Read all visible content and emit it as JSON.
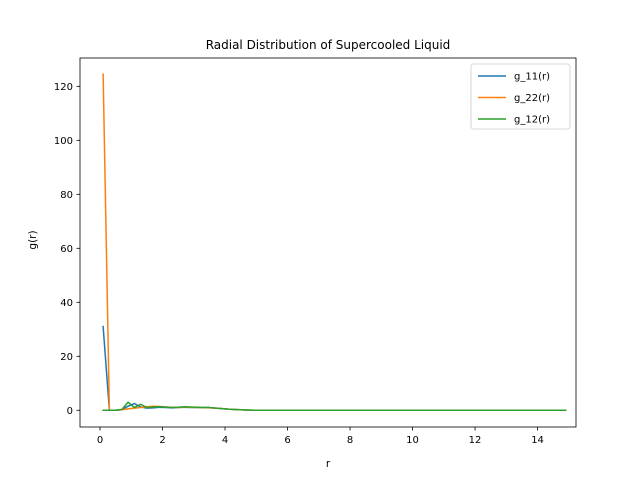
{
  "chart_data": {
    "type": "line",
    "title": "Radial Distribution of Supercooled Liquid",
    "xlabel": "r",
    "ylabel": "g(r)",
    "xlim": [
      -0.64,
      15.23
    ],
    "ylim": [
      -6.2,
      130.5
    ],
    "xticks": [
      0,
      2,
      4,
      6,
      8,
      10,
      12,
      14
    ],
    "yticks": [
      0,
      20,
      40,
      60,
      80,
      100,
      120
    ],
    "grid": false,
    "legend_position": "top-right",
    "colors": [
      "#1f77b4",
      "#ff7f0e",
      "#2ca02c"
    ],
    "series": [
      {
        "name": "g_11(r)",
        "x": [
          0.1,
          0.3,
          0.5,
          0.7,
          0.9,
          1.1,
          1.3,
          1.5,
          1.7,
          1.9,
          2.1,
          2.3,
          2.5,
          2.7,
          2.9,
          3.1,
          3.3,
          3.5,
          3.7,
          3.9,
          4.1,
          4.3,
          4.5,
          4.7,
          4.9,
          5.1,
          5.5,
          6,
          7,
          8,
          9,
          10,
          11,
          12,
          13,
          14,
          14.9
        ],
        "y": [
          31,
          0,
          0,
          0.3,
          1.5,
          2.5,
          1.2,
          0.8,
          0.9,
          1.1,
          1.0,
          0.9,
          1.0,
          1.1,
          1.0,
          1.0,
          1.0,
          1.0,
          0.8,
          0.6,
          0.4,
          0.3,
          0.2,
          0.1,
          0,
          0,
          0,
          0,
          0,
          0,
          0,
          0,
          0,
          0,
          0,
          0,
          0
        ]
      },
      {
        "name": "g_22(r)",
        "x": [
          0.1,
          0.3,
          0.5,
          0.7,
          0.9,
          1.1,
          1.3,
          1.5,
          1.7,
          1.9,
          2.1,
          2.3,
          2.5,
          2.7,
          2.9,
          3.1,
          3.3,
          3.5,
          3.7,
          3.9,
          4.1,
          4.3,
          4.5,
          4.7,
          4.9,
          5.1,
          5.5,
          6,
          7,
          8,
          9,
          10,
          11,
          12,
          13,
          14,
          14.9
        ],
        "y": [
          124.5,
          0,
          0,
          0.2,
          0.5,
          0.8,
          1.0,
          1.3,
          1.5,
          1.4,
          1.2,
          1.1,
          1.0,
          1.2,
          1.1,
          1.0,
          1.0,
          0.9,
          0.8,
          0.6,
          0.4,
          0.3,
          0.2,
          0.1,
          0,
          0,
          0,
          0,
          0,
          0,
          0,
          0,
          0,
          0,
          0,
          0,
          0
        ]
      },
      {
        "name": "g_12(r)",
        "x": [
          0.1,
          0.3,
          0.5,
          0.7,
          0.9,
          1.1,
          1.3,
          1.5,
          1.7,
          1.9,
          2.1,
          2.3,
          2.5,
          2.7,
          2.9,
          3.1,
          3.3,
          3.5,
          3.7,
          3.9,
          4.1,
          4.3,
          4.5,
          4.7,
          4.9,
          5.1,
          5.5,
          6,
          7,
          8,
          9,
          10,
          11,
          12,
          13,
          14,
          14.9
        ],
        "y": [
          0,
          0,
          0,
          0.3,
          3.0,
          1.0,
          2.2,
          1.0,
          1.2,
          1.3,
          1.2,
          1.0,
          1.1,
          1.3,
          1.2,
          1.1,
          1.0,
          1.0,
          0.8,
          0.6,
          0.4,
          0.3,
          0.2,
          0.1,
          0,
          0,
          0,
          0,
          0,
          0,
          0,
          0,
          0,
          0,
          0,
          0,
          0
        ]
      }
    ]
  }
}
